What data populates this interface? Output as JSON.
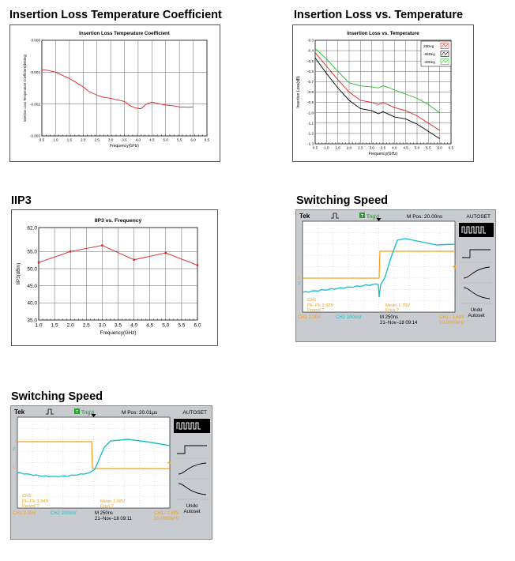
{
  "sections": {
    "s1": "Insertion Loss Temperature Coefficient",
    "s2": "Insertion Loss vs. Temperature",
    "s3": "IIP3",
    "s4": "Switching Speed",
    "s5": "Switching Speed"
  },
  "chart_data": [
    {
      "type": "line",
      "title": "Insertion Loss Temperature Coefficient",
      "xlabel": "Frequency(GHz)",
      "ylabel": "Insertion Loss Temperature Coefficient(dB/deg)",
      "xlim": [
        0.5,
        6.5
      ],
      "ylim": [
        -0.003,
        0.0
      ],
      "xticks": [
        "0.5",
        "1.0",
        "1.5",
        "2.0",
        "2.5",
        "3.0",
        "3.5",
        "4.0",
        "4.5",
        "5.0",
        "5.5",
        "6.0",
        "6.5"
      ],
      "yticks": [
        "0.000",
        "-0.001",
        "-0.002",
        "-0.003"
      ],
      "grid": true,
      "series": [
        {
          "color": "#e02020",
          "x": [
            0.5,
            0.7,
            1.0,
            1.2,
            1.5,
            1.7,
            2.0,
            2.2,
            2.5,
            2.7,
            3.0,
            3.2,
            3.5,
            3.7,
            3.9,
            4.1,
            4.3,
            4.5,
            4.8,
            5.0,
            5.3,
            5.5,
            5.8,
            6.0
          ],
          "y": [
            -0.00092,
            -0.00094,
            -0.001,
            -0.00108,
            -0.0012,
            -0.0013,
            -0.00146,
            -0.0016,
            -0.00172,
            -0.00178,
            -0.00182,
            -0.00186,
            -0.00192,
            -0.00205,
            -0.00212,
            -0.00215,
            -0.002,
            -0.00194,
            -0.002,
            -0.00203,
            -0.00206,
            -0.00209,
            -0.0021,
            -0.00209
          ]
        }
      ]
    },
    {
      "type": "line",
      "title": "Insertion Loss vs. Temperature",
      "xlabel": "Frequency(GHz)",
      "ylabel": "Insertion Loss(dB)",
      "xlim": [
        0.5,
        6.5
      ],
      "ylim": [
        -1.3,
        -0.3
      ],
      "xticks": [
        "0.5",
        "1.0",
        "1.5",
        "2.0",
        "2.5",
        "3.0",
        "3.5",
        "4.0",
        "4.5",
        "5.0",
        "5.5",
        "6.0",
        "6.5"
      ],
      "yticks": [
        "-0.3",
        "-0.4",
        "-0.5",
        "-0.6",
        "-0.7",
        "-0.8",
        "-0.9",
        "-1.0",
        "-1.1",
        "-1.2",
        "-1.3"
      ],
      "grid": true,
      "legend_position": "top-right",
      "series": [
        {
          "name": "25Deg",
          "color": "#e02020",
          "x": [
            0.5,
            1.0,
            1.5,
            2.0,
            2.5,
            3.0,
            3.3,
            3.5,
            3.8,
            4.0,
            4.5,
            5.0,
            5.5,
            6.0
          ],
          "y": [
            -0.42,
            -0.55,
            -0.68,
            -0.8,
            -0.88,
            -0.9,
            -0.92,
            -0.9,
            -0.93,
            -0.95,
            -0.98,
            -1.03,
            -1.1,
            -1.17
          ]
        },
        {
          "name": "-85Deg",
          "color": "#000000",
          "x": [
            0.5,
            1.0,
            1.5,
            2.0,
            2.5,
            3.0,
            3.3,
            3.5,
            3.8,
            4.0,
            4.5,
            5.0,
            5.5,
            6.0
          ],
          "y": [
            -0.47,
            -0.62,
            -0.76,
            -0.88,
            -0.96,
            -0.98,
            -1.01,
            -0.99,
            -1.02,
            -1.04,
            -1.06,
            -1.11,
            -1.18,
            -1.25
          ]
        },
        {
          "name": "-40Deg",
          "color": "#20c020",
          "x": [
            0.5,
            1.0,
            1.5,
            2.0,
            2.5,
            3.0,
            3.3,
            3.5,
            3.8,
            4.0,
            4.5,
            5.0,
            5.5,
            6.0
          ],
          "y": [
            -0.38,
            -0.48,
            -0.6,
            -0.71,
            -0.74,
            -0.75,
            -0.76,
            -0.74,
            -0.76,
            -0.78,
            -0.82,
            -0.86,
            -0.92,
            -1.0
          ]
        }
      ]
    },
    {
      "type": "line",
      "title": "IIP3 vs. Frequency",
      "xlabel": "Frequency(GHz)",
      "ylabel": "IIP3(dBm)",
      "xlim": [
        1.0,
        6.0
      ],
      "ylim": [
        35.0,
        62.0
      ],
      "xticks": [
        "1.0",
        "1.5",
        "2.0",
        "2.5",
        "3.0",
        "3.5",
        "4.0",
        "4.5",
        "5.0",
        "5.5",
        "6.0"
      ],
      "yticks": [
        "35.0",
        "40.0",
        "45.0",
        "50.0",
        "55.0",
        "62.0"
      ],
      "grid": true,
      "series": [
        {
          "color": "#e02020",
          "x": [
            1.0,
            2.0,
            3.0,
            4.0,
            5.0,
            6.0
          ],
          "y": [
            51.8,
            55.0,
            56.8,
            52.6,
            54.6,
            51.0
          ]
        }
      ]
    }
  ],
  "scopes": [
    {
      "brand": "Tek",
      "trig": "Trig'd",
      "mpos": "M Pos: 20.00ns",
      "autoset": "AUTOSET",
      "undo": "Undo",
      "autoset_btn": "Autoset",
      "ch1_marker": "1",
      "ch2_marker": "2",
      "m1_label": "CH1",
      "m1_a": "Pk–Pk 3.92V",
      "m1_b": "Period ?",
      "m2_a": "Mean 1.75V",
      "m2_b": "Freq ?",
      "st_ch1": "CH1  2.00V",
      "st_ch2": "CH2  100mV",
      "st_m": "M 250ns",
      "st_date": "21–Nov–18 09:14",
      "st_trig": "CH1 ∕ 1.69V",
      "st_freq": "10.0000kHz",
      "colors": {
        "ch1": "#f0a020",
        "ch2": "#20c0c8",
        "screen": "#ffffff"
      }
    },
    {
      "brand": "Tek",
      "trig": "Trig'd",
      "mpos": "M Pos: 20.01μs",
      "autoset": "AUTOSET",
      "undo": "Undo",
      "autoset_btn": "Autoset",
      "ch1_marker": "1",
      "ch2_marker": "2",
      "m1_label": "CH1",
      "m1_a": "Pk–Pk 3.84V",
      "m1_b": "Period ?",
      "m2_a": "Mean 1.68V",
      "m2_b": "Freq ?",
      "st_ch1": "CH1  2.00V",
      "st_ch2": "CH2  200mV",
      "st_m": "M 250ns",
      "st_date": "21–Nov–18 09:11",
      "st_trig": "CH1 ∕ 1.69V",
      "st_freq": "10.0000kHz",
      "colors": {
        "ch1": "#f0a020",
        "ch2": "#20c0c8",
        "screen": "#ffffff"
      }
    }
  ]
}
